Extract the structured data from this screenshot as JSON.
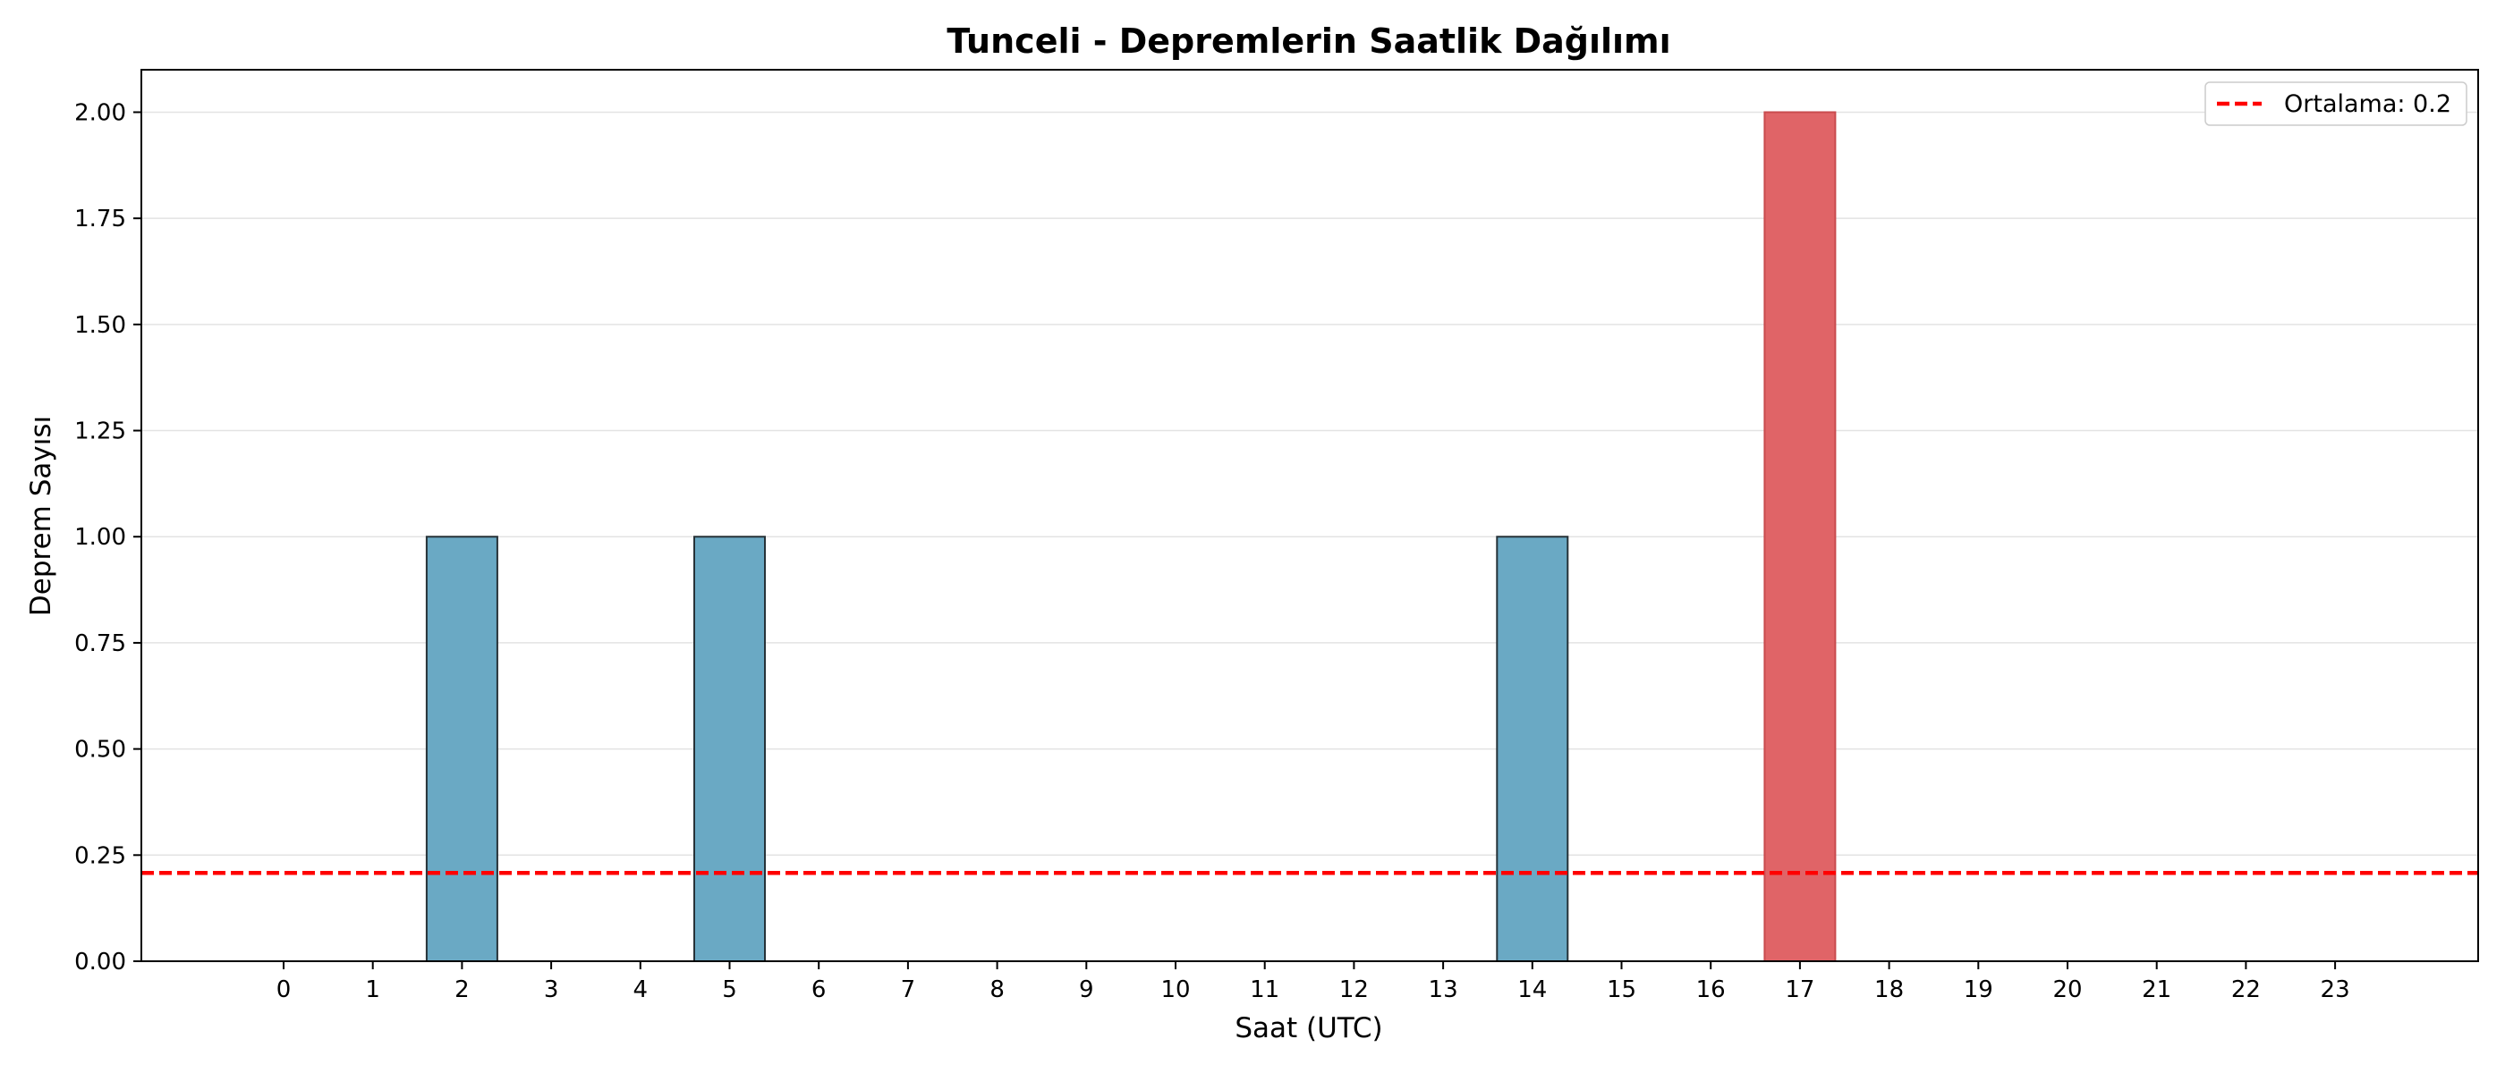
{
  "chart_data": {
    "type": "bar",
    "title": "Tunceli - Depremlerin Saatlik Dağılımı",
    "xlabel": "Saat (UTC)",
    "ylabel": "Deprem Sayısı",
    "categories": [
      "0",
      "1",
      "2",
      "3",
      "4",
      "5",
      "6",
      "7",
      "8",
      "9",
      "10",
      "11",
      "12",
      "13",
      "14",
      "15",
      "16",
      "17",
      "18",
      "19",
      "20",
      "21",
      "22",
      "23"
    ],
    "values": [
      0,
      0,
      1,
      0,
      0,
      1,
      0,
      0,
      0,
      0,
      0,
      0,
      0,
      0,
      1,
      0,
      0,
      2,
      0,
      0,
      0,
      0,
      0,
      0
    ],
    "ylim": [
      0,
      2.1
    ],
    "yticks": [
      "0.00",
      "0.25",
      "0.50",
      "0.75",
      "1.00",
      "1.25",
      "1.50",
      "1.75",
      "2.00"
    ],
    "grid": "horizontal",
    "reference_line": {
      "label": "Ortalama: 0.2",
      "value": 0.208,
      "color": "#ff0000",
      "style": "dashed"
    },
    "legend_position": "top-right",
    "colors": {
      "bar": "#6aa9c4",
      "bar_edge": "#263238",
      "highlight_bar": "#e06467",
      "highlight_edge": "#c94b4e"
    },
    "highlight_category": "17"
  }
}
